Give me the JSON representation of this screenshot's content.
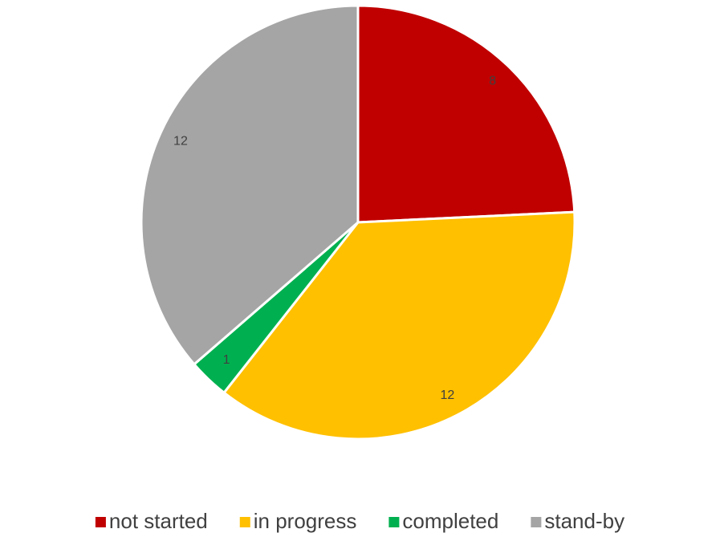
{
  "chart_data": {
    "type": "pie",
    "categories": [
      "not started",
      "in progress",
      "completed",
      "stand-by"
    ],
    "values": [
      8,
      12,
      1,
      12
    ],
    "colors": [
      "#c00000",
      "#ffc000",
      "#00b050",
      "#a5a5a5"
    ],
    "legend": "bottom"
  }
}
